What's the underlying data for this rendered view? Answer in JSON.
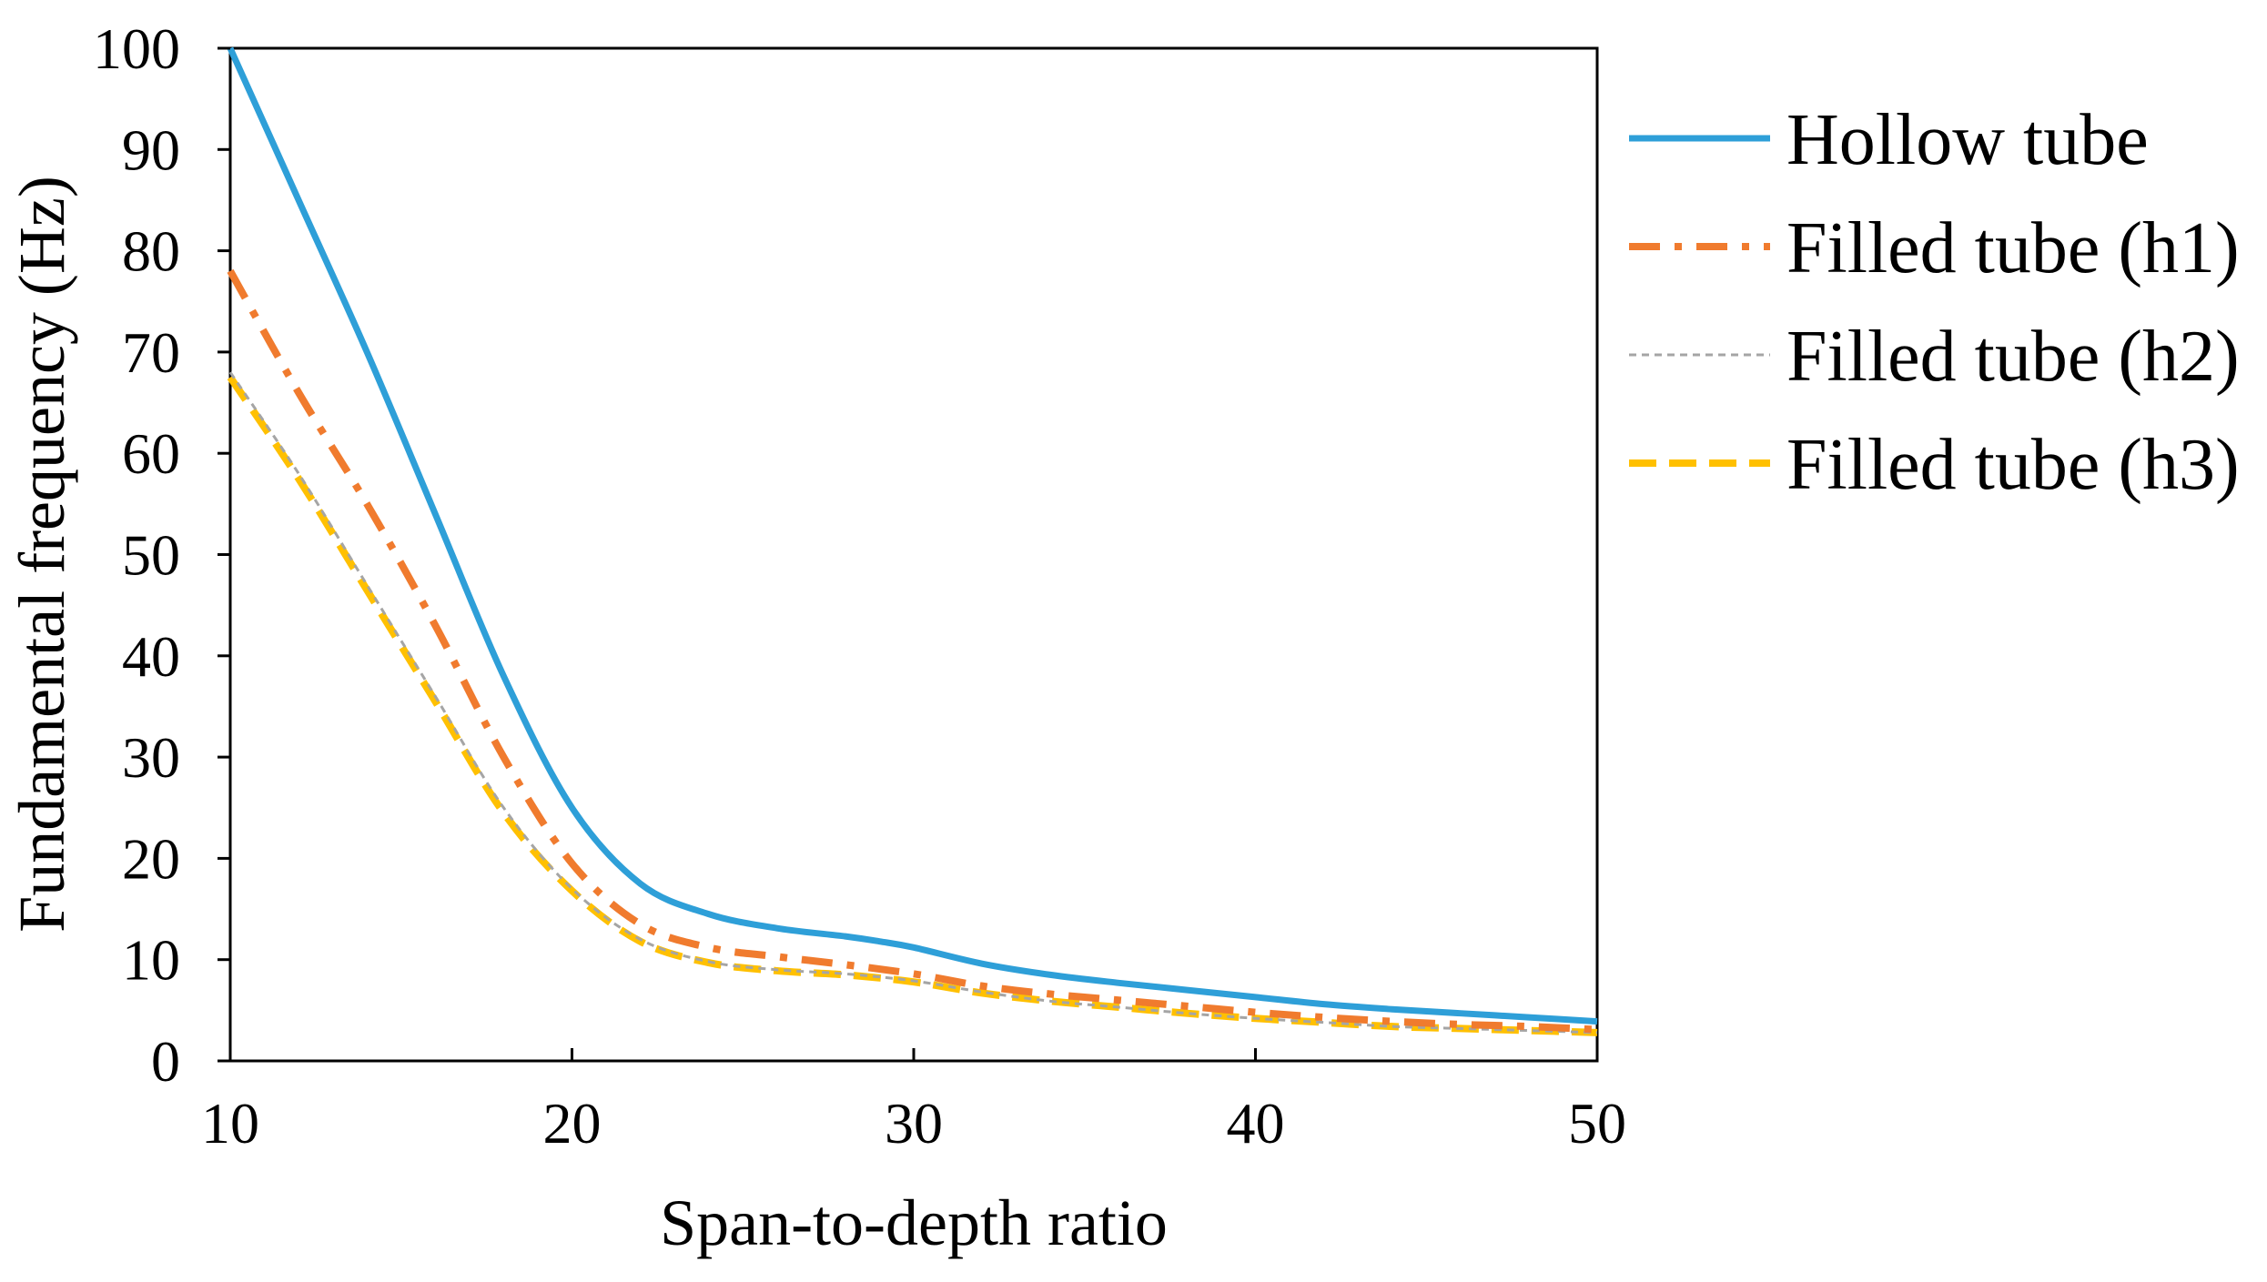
{
  "chart_data": {
    "type": "line",
    "title": "",
    "xlabel": "Span-to-depth ratio",
    "ylabel": "Fundamental frequency (Hz)",
    "xlim": [
      10,
      50
    ],
    "ylim": [
      0,
      100
    ],
    "xticks": [
      10,
      20,
      30,
      40,
      50
    ],
    "yticks": [
      0,
      10,
      20,
      30,
      40,
      50,
      60,
      70,
      80,
      90,
      100
    ],
    "grid": false,
    "legend_position": "right",
    "series": [
      {
        "name": "Hollow tube",
        "color": "#2E9FD8",
        "style": "solid",
        "x": [
          10,
          12,
          14,
          16,
          18,
          20,
          22,
          24,
          26,
          28,
          29,
          30,
          32,
          34,
          36,
          38,
          40,
          42,
          44,
          46,
          48,
          50
        ],
        "y": [
          100,
          85,
          70,
          54,
          38,
          25,
          17.5,
          14.5,
          13.1,
          12.3,
          11.8,
          11.2,
          9.6,
          8.5,
          7.7,
          7.0,
          6.3,
          5.6,
          5.1,
          4.7,
          4.3,
          3.9
        ]
      },
      {
        "name": "Filled tube (h1)",
        "color": "#F07B2E",
        "style": "dashdot",
        "x": [
          10,
          12,
          14,
          16,
          18,
          20,
          22,
          24,
          26,
          28,
          30,
          32,
          34,
          36,
          38,
          40,
          42,
          44,
          46,
          48,
          50
        ],
        "y": [
          78,
          66,
          55,
          43,
          30,
          19.5,
          13.5,
          11.2,
          10.3,
          9.5,
          8.6,
          7.4,
          6.6,
          6.0,
          5.4,
          4.8,
          4.3,
          3.9,
          3.6,
          3.4,
          3.1
        ]
      },
      {
        "name": "Filled tube (h2)",
        "color": "#A5A5A5",
        "style": "dotted",
        "x": [
          10,
          12,
          14,
          16,
          18,
          20,
          22,
          24,
          26,
          28,
          30,
          32,
          34,
          36,
          38,
          40,
          42,
          44,
          46,
          48,
          50
        ],
        "y": [
          68,
          58,
          47,
          36,
          25,
          17,
          12,
          9.8,
          9.0,
          8.6,
          7.9,
          6.8,
          5.9,
          5.3,
          4.7,
          4.2,
          3.8,
          3.4,
          3.2,
          3.0,
          2.8
        ]
      },
      {
        "name": "Filled tube (h3)",
        "color": "#FFC000",
        "style": "dashed",
        "x": [
          10,
          12,
          14,
          16,
          18,
          20,
          22,
          24,
          26,
          28,
          30,
          32,
          34,
          36,
          38,
          40,
          42,
          44,
          46,
          48,
          50
        ],
        "y": [
          67.5,
          57.5,
          46.5,
          35.5,
          24.5,
          16.8,
          11.8,
          9.7,
          8.9,
          8.5,
          7.8,
          6.7,
          5.9,
          5.3,
          4.7,
          4.2,
          3.8,
          3.4,
          3.2,
          3.0,
          2.8
        ]
      }
    ]
  }
}
